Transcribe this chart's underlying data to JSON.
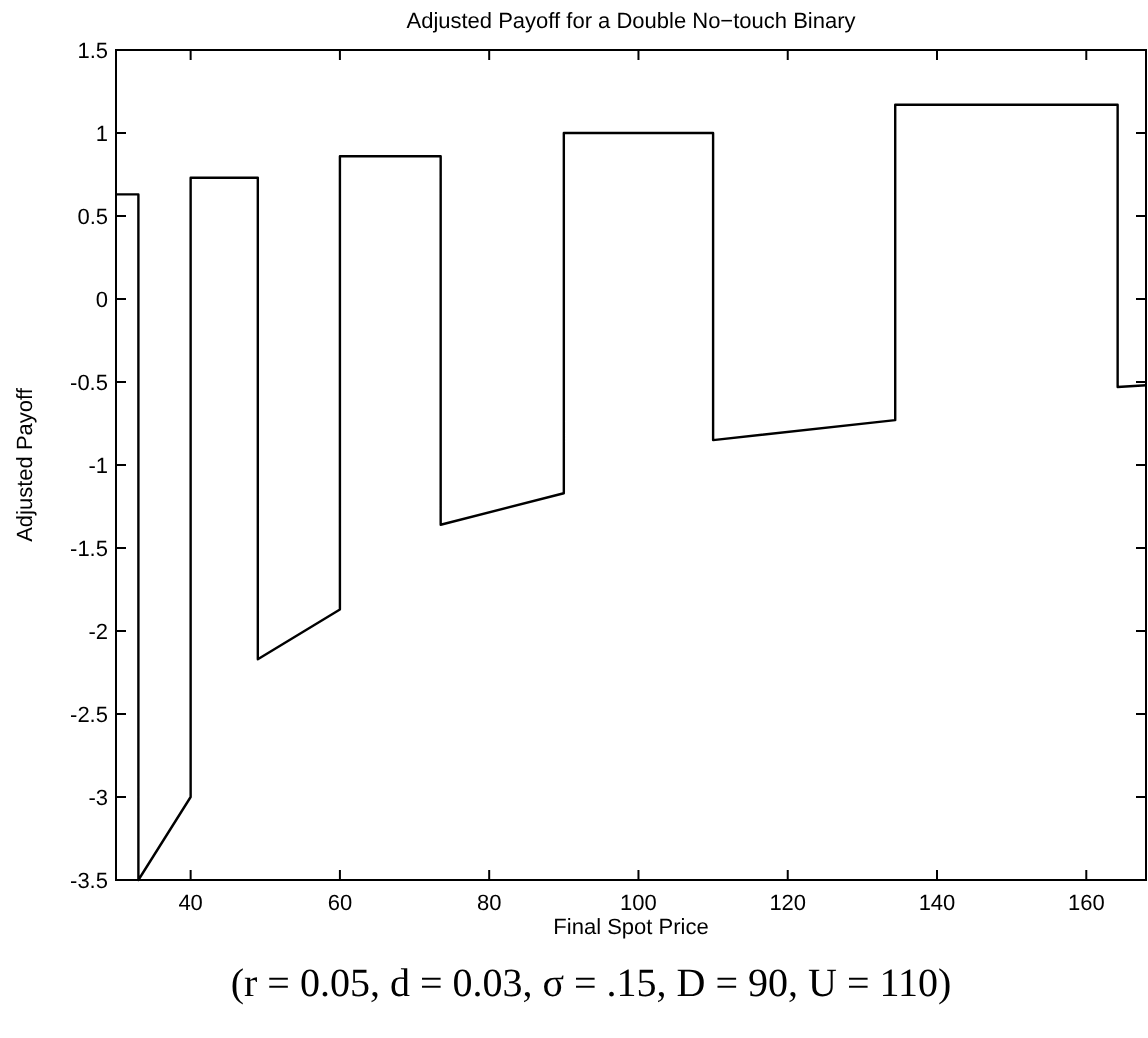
{
  "chart_data": {
    "type": "line",
    "title": "Adjusted Payoff for a Double No−touch Binary",
    "xlabel": "Final Spot Price",
    "ylabel": "Adjusted Payoff",
    "annotations": [
      "(r = 0.05, d = 0.03, σ = .15, D = 90, U = 110)"
    ],
    "x": [
      30,
      33,
      33,
      40,
      40,
      49,
      49,
      60,
      60,
      73.5,
      73.5,
      90,
      90,
      110,
      110,
      134.4,
      134.4,
      164.2,
      164.2,
      168
    ],
    "series": [
      {
        "color": "#000000",
        "values": [
          0.63,
          0.63,
          -3.5,
          -3.0,
          0.73,
          0.73,
          -2.17,
          -1.87,
          0.86,
          0.86,
          -1.36,
          -1.17,
          1.0,
          1.0,
          -0.85,
          -0.73,
          1.17,
          1.17,
          -0.53,
          -0.52
        ]
      }
    ],
    "xlim": [
      30,
      168
    ],
    "ylim": [
      -3.5,
      1.5
    ],
    "xticks": [
      40,
      60,
      80,
      100,
      120,
      140,
      160
    ],
    "yticks": [
      -3.5,
      -3,
      -2.5,
      -2,
      -1.5,
      -1,
      -0.5,
      0,
      0.5,
      1,
      1.5
    ],
    "grid": false,
    "marker": "none",
    "line_style": "solid"
  }
}
